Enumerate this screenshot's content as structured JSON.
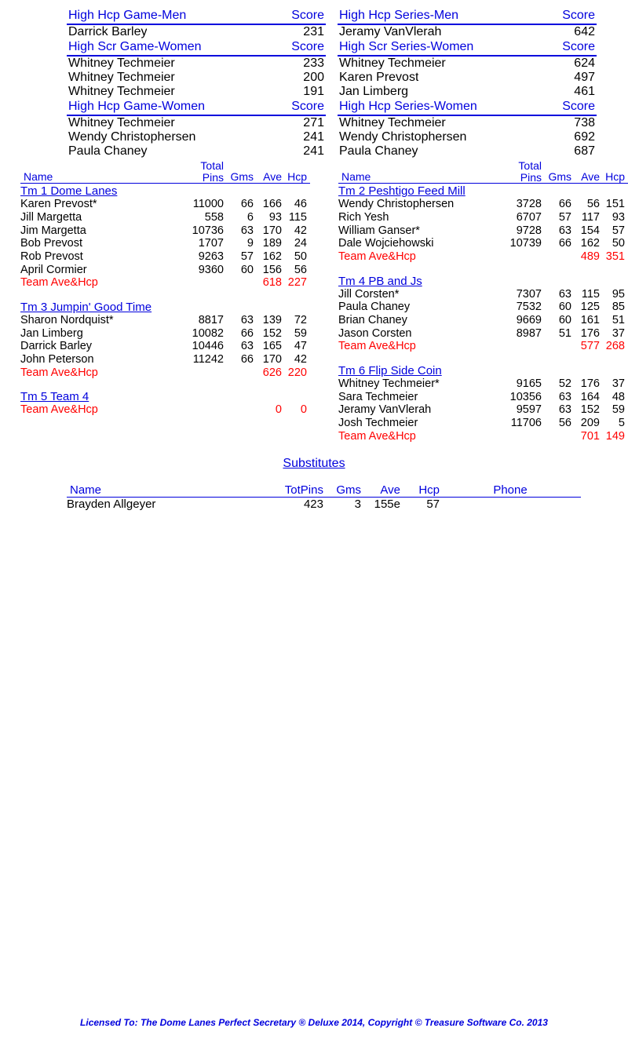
{
  "colors": {
    "blue": "#0000dd",
    "red": "#ff0000",
    "black": "#000000",
    "background": "#ffffff"
  },
  "scoreLabels": {
    "score": "Score",
    "hdr_hhg_m": "High Hcp Game-Men",
    "hdr_hsg_w": "High Scr Game-Women",
    "hdr_hhg_w": "High Hcp Game-Women",
    "hdr_hhs_m": "High Hcp Series-Men",
    "hdr_hss_w": "High Scr Series-Women",
    "hdr_hhs_w": "High Hcp Series-Women"
  },
  "leftScores": [
    {
      "header": "hdr_hhg_m",
      "rows": [
        {
          "name": "Darrick Barley",
          "score": "231"
        }
      ]
    },
    {
      "header": "hdr_hsg_w",
      "rows": [
        {
          "name": "Whitney Techmeier",
          "score": "233"
        },
        {
          "name": "Whitney Techmeier",
          "score": "200"
        },
        {
          "name": "Whitney Techmeier",
          "score": "191"
        }
      ]
    },
    {
      "header": "hdr_hhg_w",
      "rows": [
        {
          "name": "Whitney Techmeier",
          "score": "271"
        },
        {
          "name": "Wendy Christophersen",
          "score": "241"
        },
        {
          "name": "Paula Chaney",
          "score": "241"
        }
      ]
    }
  ],
  "rightScores": [
    {
      "header": "hdr_hhs_m",
      "rows": [
        {
          "name": "Jeramy VanVlerah",
          "score": "642"
        }
      ]
    },
    {
      "header": "hdr_hss_w",
      "rows": [
        {
          "name": "Whitney Techmeier",
          "score": "624"
        },
        {
          "name": "Karen Prevost",
          "score": "497"
        },
        {
          "name": "Jan Limberg",
          "score": "461"
        }
      ]
    },
    {
      "header": "hdr_hhs_w",
      "rows": [
        {
          "name": "Whitney Techmeier",
          "score": "738"
        },
        {
          "name": "Wendy Christophersen",
          "score": "692"
        },
        {
          "name": "Paula Chaney",
          "score": "687"
        }
      ]
    }
  ],
  "teamHeaders": {
    "name": "Name",
    "total": "Total",
    "pins": "Pins",
    "gms": "Gms",
    "ave": "Ave",
    "hcp": "Hcp",
    "team_avg": "Team Ave&Hcp"
  },
  "leftTeams": [
    {
      "name": "Tm 1 Dome Lanes",
      "players": [
        {
          "name": "Karen Prevost*",
          "pins": "11000",
          "gms": "66",
          "ave": "166",
          "hcp": "46"
        },
        {
          "name": "Jill Margetta",
          "pins": "558",
          "gms": "6",
          "ave": "93",
          "hcp": "115"
        },
        {
          "name": "Jim Margetta",
          "pins": "10736",
          "gms": "63",
          "ave": "170",
          "hcp": "42"
        },
        {
          "name": "Bob Prevost",
          "pins": "1707",
          "gms": "9",
          "ave": "189",
          "hcp": "24"
        },
        {
          "name": "Rob Prevost",
          "pins": "9263",
          "gms": "57",
          "ave": "162",
          "hcp": "50"
        },
        {
          "name": "April Cormier",
          "pins": "9360",
          "gms": "60",
          "ave": "156",
          "hcp": "56"
        }
      ],
      "avg_ave": "618",
      "avg_hcp": "227"
    },
    {
      "name": "Tm 3 Jumpin' Good Time",
      "players": [
        {
          "name": "Sharon Nordquist*",
          "pins": "8817",
          "gms": "63",
          "ave": "139",
          "hcp": "72"
        },
        {
          "name": "Jan Limberg",
          "pins": "10082",
          "gms": "66",
          "ave": "152",
          "hcp": "59"
        },
        {
          "name": "Darrick Barley",
          "pins": "10446",
          "gms": "63",
          "ave": "165",
          "hcp": "47"
        },
        {
          "name": "John Peterson",
          "pins": "11242",
          "gms": "66",
          "ave": "170",
          "hcp": "42"
        }
      ],
      "avg_ave": "626",
      "avg_hcp": "220"
    },
    {
      "name": "Tm 5 Team 4",
      "players": [],
      "avg_ave": "0",
      "avg_hcp": "0"
    }
  ],
  "rightTeams": [
    {
      "name": "Tm 2 Peshtigo Feed Mill",
      "players": [
        {
          "name": "Wendy Christophersen",
          "pins": "3728",
          "gms": "66",
          "ave": "56",
          "hcp": "151"
        },
        {
          "name": "Rich Yesh",
          "pins": "6707",
          "gms": "57",
          "ave": "117",
          "hcp": "93"
        },
        {
          "name": "William Ganser*",
          "pins": "9728",
          "gms": "63",
          "ave": "154",
          "hcp": "57"
        },
        {
          "name": "Dale Wojciehowski",
          "pins": "10739",
          "gms": "66",
          "ave": "162",
          "hcp": "50"
        }
      ],
      "avg_ave": "489",
      "avg_hcp": "351"
    },
    {
      "name": "Tm 4 PB and Js",
      "players": [
        {
          "name": "Jill Corsten*",
          "pins": "7307",
          "gms": "63",
          "ave": "115",
          "hcp": "95"
        },
        {
          "name": "Paula Chaney",
          "pins": "7532",
          "gms": "60",
          "ave": "125",
          "hcp": "85"
        },
        {
          "name": "Brian Chaney",
          "pins": "9669",
          "gms": "60",
          "ave": "161",
          "hcp": "51"
        },
        {
          "name": "Jason Corsten",
          "pins": "8987",
          "gms": "51",
          "ave": "176",
          "hcp": "37"
        }
      ],
      "avg_ave": "577",
      "avg_hcp": "268"
    },
    {
      "name": "Tm 6 Flip Side Coin",
      "players": [
        {
          "name": "Whitney Techmeier*",
          "pins": "9165",
          "gms": "52",
          "ave": "176",
          "hcp": "37"
        },
        {
          "name": "Sara Techmeier",
          "pins": "10356",
          "gms": "63",
          "ave": "164",
          "hcp": "48"
        },
        {
          "name": "Jeramy VanVlerah",
          "pins": "9597",
          "gms": "63",
          "ave": "152",
          "hcp": "59"
        },
        {
          "name": "Josh Techmeier",
          "pins": "11706",
          "gms": "56",
          "ave": "209",
          "hcp": "5"
        }
      ],
      "avg_ave": "701",
      "avg_hcp": "149"
    }
  ],
  "substitutes": {
    "title": "Substitutes",
    "headers": {
      "name": "Name",
      "totpins": "TotPins",
      "gms": "Gms",
      "ave": "Ave",
      "hcp": "Hcp",
      "phone": "Phone"
    },
    "rows": [
      {
        "name": "Brayden Allgeyer",
        "totpins": "423",
        "gms": "3",
        "ave": "155e",
        "hcp": "57",
        "phone": ""
      }
    ]
  },
  "footer": "Licensed To: The Dome Lanes    Perfect Secretary ® Deluxe  2014, Copyright © Treasure Software Co. 2013"
}
